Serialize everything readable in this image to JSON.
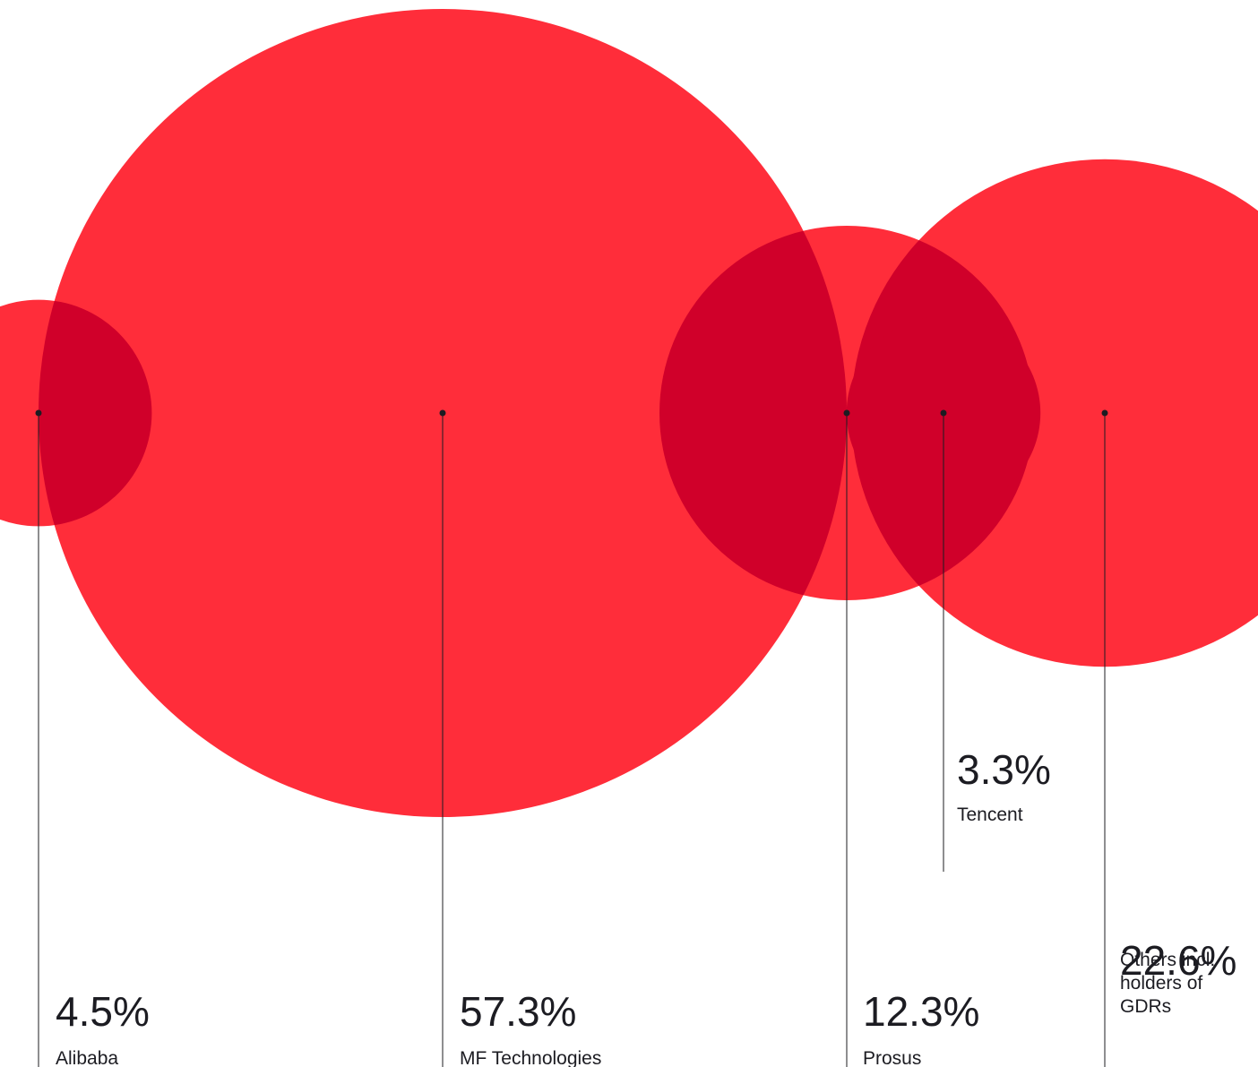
{
  "chart_data": {
    "type": "bubble",
    "title": "",
    "unit": "%",
    "series": [
      {
        "name_lines": [
          "Alibaba"
        ],
        "value": 4.5,
        "value_label": "4.5%"
      },
      {
        "name_lines": [
          "MF Technologies"
        ],
        "value": 57.3,
        "value_label": "57.3%"
      },
      {
        "name_lines": [
          "Prosus"
        ],
        "value": 12.3,
        "value_label": "12.3%"
      },
      {
        "name_lines": [
          "Tencent"
        ],
        "value": 3.3,
        "value_label": "3.3%"
      },
      {
        "name_lines": [
          "Others incl.",
          "holders of",
          "GDRs"
        ],
        "value": 22.6,
        "value_label": "22.6%"
      }
    ]
  },
  "colors": {
    "bubble": "#ff2d3a",
    "overlap": "#d0002a",
    "leader": "#1c1c22",
    "text": "#1c1c22"
  }
}
